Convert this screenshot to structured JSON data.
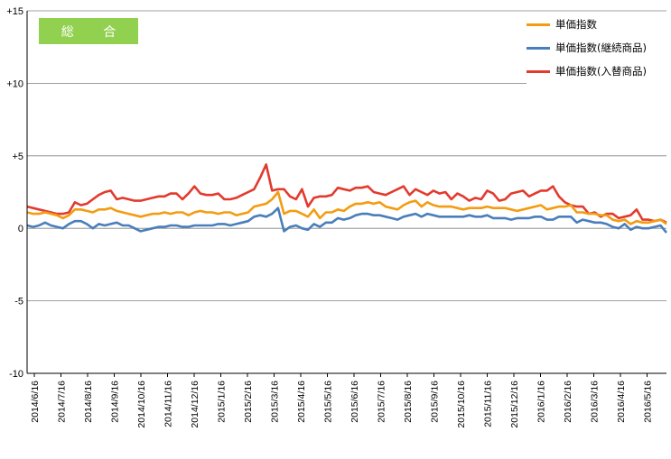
{
  "badge": {
    "label": "総 合",
    "color": "#92d050"
  },
  "colors": {
    "axis": "#000000",
    "grid": "#808080"
  },
  "chart_data": {
    "type": "line",
    "title": "",
    "xlabel": "",
    "ylabel": "",
    "ylim": [
      -10,
      15
    ],
    "y_ticks": [
      15,
      10,
      5,
      0,
      -5,
      -10
    ],
    "y_tick_labels": [
      "+15",
      "+10",
      "+5",
      "0",
      "-5",
      "-10"
    ],
    "grid": "horizontal",
    "legend_position": "top-right",
    "x_tick_labels": [
      "2014/6/16",
      "2014/7/16",
      "2014/8/16",
      "2014/9/16",
      "2014/10/16",
      "2014/11/16",
      "2014/12/16",
      "2015/1/16",
      "2015/2/16",
      "2015/3/16",
      "2015/4/16",
      "2015/5/16",
      "2015/6/16",
      "2015/7/16",
      "2015/8/16",
      "2015/9/16",
      "2015/10/16",
      "2015/11/16",
      "2015/12/16",
      "2016/1/16",
      "2016/2/16",
      "2016/3/16",
      "2016/4/16",
      "2016/5/16"
    ],
    "series": [
      {
        "name": "単価指数",
        "color": "#f39c12",
        "values": [
          1.1,
          1.0,
          1.0,
          1.1,
          1.0,
          0.9,
          0.7,
          0.9,
          1.3,
          1.3,
          1.2,
          1.1,
          1.3,
          1.3,
          1.4,
          1.2,
          1.1,
          1.0,
          0.9,
          0.8,
          0.9,
          1.0,
          1.0,
          1.1,
          1.0,
          1.1,
          1.1,
          0.9,
          1.1,
          1.2,
          1.1,
          1.1,
          1.0,
          1.1,
          1.1,
          0.9,
          1.0,
          1.1,
          1.5,
          1.6,
          1.7,
          2.0,
          2.5,
          1.0,
          1.2,
          1.2,
          1.0,
          0.8,
          1.3,
          0.7,
          1.1,
          1.1,
          1.3,
          1.2,
          1.5,
          1.7,
          1.7,
          1.8,
          1.7,
          1.8,
          1.5,
          1.4,
          1.3,
          1.6,
          1.8,
          1.9,
          1.5,
          1.8,
          1.6,
          1.5,
          1.5,
          1.5,
          1.4,
          1.3,
          1.4,
          1.4,
          1.4,
          1.5,
          1.4,
          1.4,
          1.4,
          1.3,
          1.2,
          1.3,
          1.4,
          1.5,
          1.6,
          1.3,
          1.4,
          1.5,
          1.5,
          1.6,
          1.1,
          1.1,
          1.0,
          1.0,
          0.9,
          0.9,
          0.6,
          0.5,
          0.6,
          0.3,
          0.5,
          0.4,
          0.4,
          0.5,
          0.6,
          0.3
        ]
      },
      {
        "name": "単価指数(継続商品)",
        "color": "#4a7ebb",
        "values": [
          0.2,
          0.1,
          0.2,
          0.4,
          0.2,
          0.1,
          0.0,
          0.3,
          0.5,
          0.5,
          0.3,
          0.0,
          0.3,
          0.2,
          0.3,
          0.4,
          0.2,
          0.2,
          0.0,
          -0.2,
          -0.1,
          0.0,
          0.1,
          0.1,
          0.2,
          0.2,
          0.1,
          0.1,
          0.2,
          0.2,
          0.2,
          0.2,
          0.3,
          0.3,
          0.2,
          0.3,
          0.4,
          0.5,
          0.8,
          0.9,
          0.8,
          1.0,
          1.4,
          -0.2,
          0.1,
          0.2,
          0.0,
          -0.1,
          0.3,
          0.1,
          0.4,
          0.4,
          0.7,
          0.6,
          0.7,
          0.9,
          1.0,
          1.0,
          0.9,
          0.9,
          0.8,
          0.7,
          0.6,
          0.8,
          0.9,
          1.0,
          0.8,
          1.0,
          0.9,
          0.8,
          0.8,
          0.8,
          0.8,
          0.8,
          0.9,
          0.8,
          0.8,
          0.9,
          0.7,
          0.7,
          0.7,
          0.6,
          0.7,
          0.7,
          0.7,
          0.8,
          0.8,
          0.6,
          0.6,
          0.8,
          0.8,
          0.8,
          0.4,
          0.6,
          0.5,
          0.4,
          0.4,
          0.3,
          0.1,
          0.0,
          0.3,
          -0.1,
          0.1,
          0.0,
          0.0,
          0.1,
          0.2,
          -0.3
        ]
      },
      {
        "name": "単価指数(入替商品)",
        "color": "#e23b2e",
        "values": [
          1.5,
          1.4,
          1.3,
          1.2,
          1.1,
          1.0,
          1.0,
          1.1,
          1.8,
          1.6,
          1.7,
          2.0,
          2.3,
          2.5,
          2.6,
          2.0,
          2.1,
          2.0,
          1.9,
          1.9,
          2.0,
          2.1,
          2.2,
          2.2,
          2.4,
          2.4,
          2.0,
          2.4,
          2.9,
          2.4,
          2.3,
          2.3,
          2.4,
          2.0,
          2.0,
          2.1,
          2.3,
          2.5,
          2.7,
          3.5,
          4.4,
          2.6,
          2.7,
          2.7,
          2.2,
          2.0,
          2.7,
          1.5,
          2.1,
          2.2,
          2.2,
          2.3,
          2.8,
          2.7,
          2.6,
          2.8,
          2.8,
          2.9,
          2.5,
          2.4,
          2.3,
          2.5,
          2.7,
          2.9,
          2.3,
          2.7,
          2.5,
          2.3,
          2.6,
          2.4,
          2.5,
          2.0,
          2.4,
          2.2,
          1.9,
          2.1,
          2.0,
          2.6,
          2.4,
          1.9,
          2.0,
          2.4,
          2.5,
          2.6,
          2.2,
          2.4,
          2.6,
          2.6,
          2.9,
          2.2,
          1.8,
          1.6,
          1.5,
          1.5,
          1.0,
          1.1,
          0.8,
          1.0,
          1.0,
          0.7,
          0.8,
          0.9,
          1.3,
          0.6,
          0.6,
          0.5,
          0.6,
          0.4
        ]
      }
    ]
  }
}
